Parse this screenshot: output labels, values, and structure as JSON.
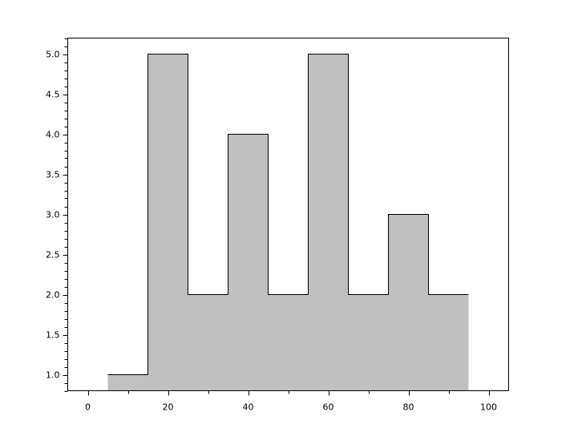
{
  "chart_data": {
    "type": "bar",
    "subtype": "histogram-step",
    "bin_edges": [
      5,
      15,
      25,
      35,
      45,
      55,
      65,
      75,
      85,
      95
    ],
    "values": [
      1,
      5,
      2,
      4,
      2,
      5,
      2,
      3,
      2
    ],
    "xlim": [
      -5,
      105
    ],
    "ylim": [
      0.8,
      5.2
    ],
    "xticks": [
      0,
      20,
      40,
      60,
      80,
      100
    ],
    "xtick_labels": [
      "0",
      "20",
      "40",
      "60",
      "80",
      "100"
    ],
    "yticks": [
      1.0,
      1.5,
      2.0,
      2.5,
      3.0,
      3.5,
      4.0,
      4.5,
      5.0
    ],
    "ytick_labels": [
      "1.0",
      "1.5",
      "2.0",
      "2.5",
      "3.0",
      "3.5",
      "4.0",
      "4.5",
      "5.0"
    ],
    "x_minor_step": 10,
    "y_minor_step": 0.1,
    "title": "",
    "xlabel": "",
    "ylabel": "",
    "grid": false,
    "colors": {
      "fill": "#c0c0c0",
      "edge": "#000000"
    }
  }
}
